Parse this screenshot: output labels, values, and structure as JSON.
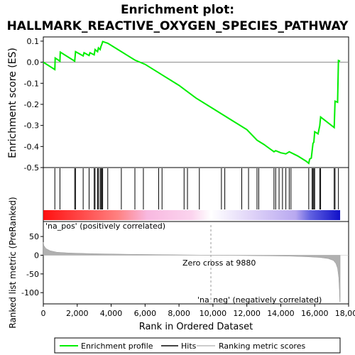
{
  "chart_data": {
    "type": "line",
    "title_line1": "Enrichment plot:",
    "title_line2": "HALLMARK_REACTIVE_OXYGEN_SPECIES_PATHWAY",
    "ylabel_top": "Enrichment score (ES)",
    "ylabel_bottom": "Ranked list metric (PreRanked)",
    "xlabel": "Rank in Ordered Dataset",
    "x_range": [
      0,
      18000
    ],
    "x_max_rank": 17500,
    "es_ylim": [
      -0.5,
      0.12
    ],
    "es_yticks": [
      "0.1",
      "0.0",
      "-0.1",
      "-0.2",
      "-0.3",
      "-0.4",
      "-0.5"
    ],
    "es_ytick_values": [
      0.1,
      0.0,
      -0.1,
      -0.2,
      -0.3,
      -0.4,
      -0.5
    ],
    "metric_ylim": [
      -130,
      90
    ],
    "metric_yticks": [
      "50",
      "0",
      "-50",
      "-100"
    ],
    "metric_ytick_values": [
      50,
      0,
      -50,
      -100
    ],
    "xticks": [
      "0",
      "2,000",
      "4,000",
      "6,000",
      "8,000",
      "10,000",
      "12,000",
      "14,000",
      "16,000",
      "18,000"
    ],
    "xtick_values": [
      0,
      2000,
      4000,
      6000,
      8000,
      10000,
      12000,
      14000,
      16000,
      18000
    ],
    "zero_cross_rank": 9880,
    "zero_cross_label": "Zero cross at 9880",
    "pos_label": "'na_pos' (positively correlated)",
    "neg_label": "'na_neg' (negatively correlated)",
    "series": [
      {
        "name": "Enrichment profile",
        "color": "#00ee00",
        "points": [
          [
            0,
            0.0
          ],
          [
            680,
            -0.035
          ],
          [
            700,
            0.02
          ],
          [
            980,
            0.005
          ],
          [
            1000,
            0.048
          ],
          [
            1850,
            0.005
          ],
          [
            1900,
            0.05
          ],
          [
            2350,
            0.03
          ],
          [
            2400,
            0.045
          ],
          [
            2700,
            0.032
          ],
          [
            2750,
            0.045
          ],
          [
            3000,
            0.035
          ],
          [
            3050,
            0.06
          ],
          [
            3200,
            0.05
          ],
          [
            3250,
            0.068
          ],
          [
            3350,
            0.06
          ],
          [
            3400,
            0.075
          ],
          [
            3450,
            0.085
          ],
          [
            3500,
            0.098
          ],
          [
            3800,
            0.09
          ],
          [
            4600,
            0.05
          ],
          [
            5000,
            0.03
          ],
          [
            5400,
            0.01
          ],
          [
            6000,
            -0.01
          ],
          [
            6800,
            -0.05
          ],
          [
            7000,
            -0.06
          ],
          [
            8000,
            -0.11
          ],
          [
            9000,
            -0.17
          ],
          [
            10000,
            -0.22
          ],
          [
            11000,
            -0.27
          ],
          [
            12000,
            -0.32
          ],
          [
            12600,
            -0.37
          ],
          [
            13000,
            -0.39
          ],
          [
            13600,
            -0.425
          ],
          [
            13700,
            -0.42
          ],
          [
            14000,
            -0.43
          ],
          [
            14300,
            -0.435
          ],
          [
            14500,
            -0.425
          ],
          [
            15000,
            -0.445
          ],
          [
            15500,
            -0.47
          ],
          [
            15650,
            -0.48
          ],
          [
            15700,
            -0.46
          ],
          [
            15800,
            -0.455
          ],
          [
            15850,
            -0.42
          ],
          [
            15900,
            -0.385
          ],
          [
            15950,
            -0.38
          ],
          [
            16000,
            -0.33
          ],
          [
            16200,
            -0.34
          ],
          [
            16300,
            -0.3
          ],
          [
            16350,
            -0.26
          ],
          [
            17150,
            -0.31
          ],
          [
            17200,
            -0.185
          ],
          [
            17350,
            -0.19
          ],
          [
            17400,
            0.008
          ],
          [
            17500,
            0.005
          ]
        ]
      }
    ],
    "hits": [
      680,
      980,
      1850,
      1900,
      2350,
      2700,
      3000,
      3050,
      3200,
      3250,
      3350,
      3400,
      3450,
      3500,
      3800,
      4600,
      5400,
      5900,
      6800,
      7000,
      8300,
      8500,
      9200,
      10500,
      10700,
      11700,
      12100,
      12600,
      12700,
      13600,
      13700,
      13900,
      14100,
      14300,
      14500,
      14600,
      15650,
      15850,
      15900,
      15950,
      16000,
      16300,
      16350,
      17150,
      17200,
      17400
    ],
    "metric_profile": [
      [
        0,
        35
      ],
      [
        30,
        26
      ],
      [
        150,
        18
      ],
      [
        400,
        12
      ],
      [
        800,
        8
      ],
      [
        1500,
        6
      ],
      [
        3000,
        4
      ],
      [
        5000,
        2.5
      ],
      [
        7000,
        1.5
      ],
      [
        9000,
        0.5
      ],
      [
        9880,
        0
      ],
      [
        11000,
        -0.5
      ],
      [
        13000,
        -1.5
      ],
      [
        14500,
        -2.5
      ],
      [
        15500,
        -4
      ],
      [
        16300,
        -6
      ],
      [
        16800,
        -9
      ],
      [
        17100,
        -14
      ],
      [
        17250,
        -22
      ],
      [
        17350,
        -35
      ],
      [
        17420,
        -60
      ],
      [
        17460,
        -95
      ],
      [
        17480,
        -125
      ],
      [
        17500,
        -125
      ]
    ],
    "legend": {
      "enrichment_label": "Enrichment profile",
      "hits_label": "Hits",
      "metric_label": "Ranking metric scores",
      "enrichment_color": "#00ee00",
      "hits_color": "#444444",
      "metric_color": "#cccccc"
    },
    "colors": {
      "bar_red": "#ff1010",
      "bar_pink": "#f8b8e0",
      "bar_white_center": "#ffffff",
      "bar_lavender": "#c8b8f0",
      "bar_blue": "#2020e0",
      "pos_label_color": "#cc0000",
      "neg_label_color": "#0000cc"
    }
  }
}
